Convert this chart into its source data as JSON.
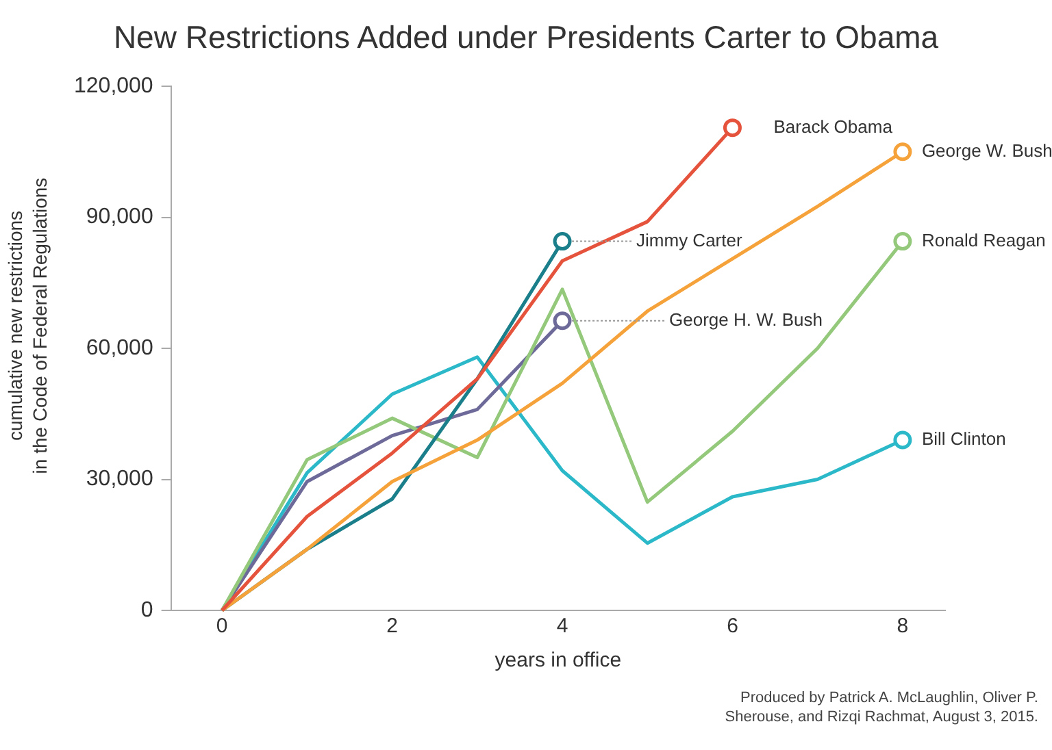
{
  "chart_data": {
    "type": "line",
    "title": "New Restrictions Added under Presidents Carter to Obama",
    "xlabel": "years in office",
    "ylabel": "cumulative new restrictions\nin the Code of Federal Regulations",
    "x": [
      0,
      1,
      2,
      3,
      4,
      5,
      6,
      7,
      8
    ],
    "series": [
      {
        "name": "Barack Obama",
        "color": "#e5533d",
        "values": [
          0,
          21500,
          36000,
          53000,
          80000,
          89000,
          110500,
          null,
          null
        ]
      },
      {
        "name": "George W. Bush",
        "color": "#f5a23a",
        "values": [
          0,
          14000,
          29500,
          39000,
          52000,
          68500,
          80500,
          92500,
          105000
        ]
      },
      {
        "name": "Jimmy Carter",
        "color": "#1a7f8a",
        "values": [
          0,
          14000,
          25500,
          53000,
          84500,
          null,
          null,
          null,
          null
        ]
      },
      {
        "name": "Ronald Reagan",
        "color": "#94c97b",
        "values": [
          0,
          34500,
          44000,
          35000,
          73500,
          24800,
          41000,
          60000,
          84500
        ]
      },
      {
        "name": "George H. W. Bush",
        "color": "#6d6a99",
        "values": [
          0,
          29500,
          40000,
          46000,
          66300,
          null,
          null,
          null,
          null
        ]
      },
      {
        "name": "Bill Clinton",
        "color": "#2bb8c8",
        "values": [
          0,
          31500,
          49500,
          58000,
          32000,
          15400,
          26000,
          30000,
          39000
        ]
      }
    ],
    "xlim": [
      -0.6,
      8.5
    ],
    "xticks": [
      0,
      2,
      4,
      6,
      8
    ],
    "ylim": [
      0,
      120000
    ],
    "yticks": [
      0,
      {
        "value": 30000,
        "label": "30,000"
      },
      {
        "value": 60000,
        "label": "60,000"
      },
      {
        "value": 90000,
        "label": "90,000"
      },
      {
        "value": 120000,
        "label": "120,000"
      }
    ],
    "grid": false,
    "legend": false,
    "line_style": "solid",
    "annotations": [
      "Produced by Patrick A. McLaughlin, Oliver P. Sherouse, and Rizqi Rachmat, August 3, 2015."
    ]
  }
}
